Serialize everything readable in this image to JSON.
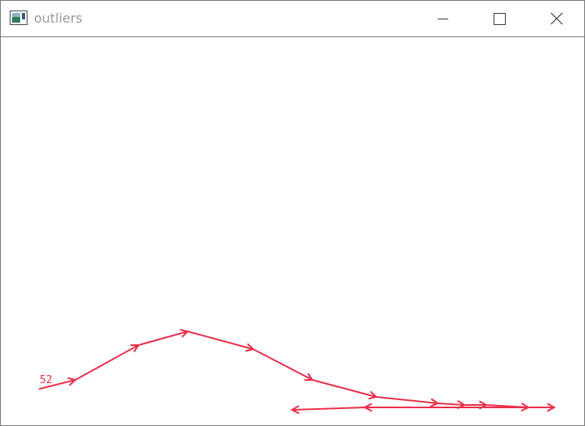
{
  "window": {
    "title": "outliers",
    "controls": {
      "minimize": "minimize-icon",
      "maximize": "maximize-icon",
      "close": "close-icon"
    }
  },
  "canvas": {
    "stroke_color": "#e8304a",
    "point_label": "52"
  }
}
